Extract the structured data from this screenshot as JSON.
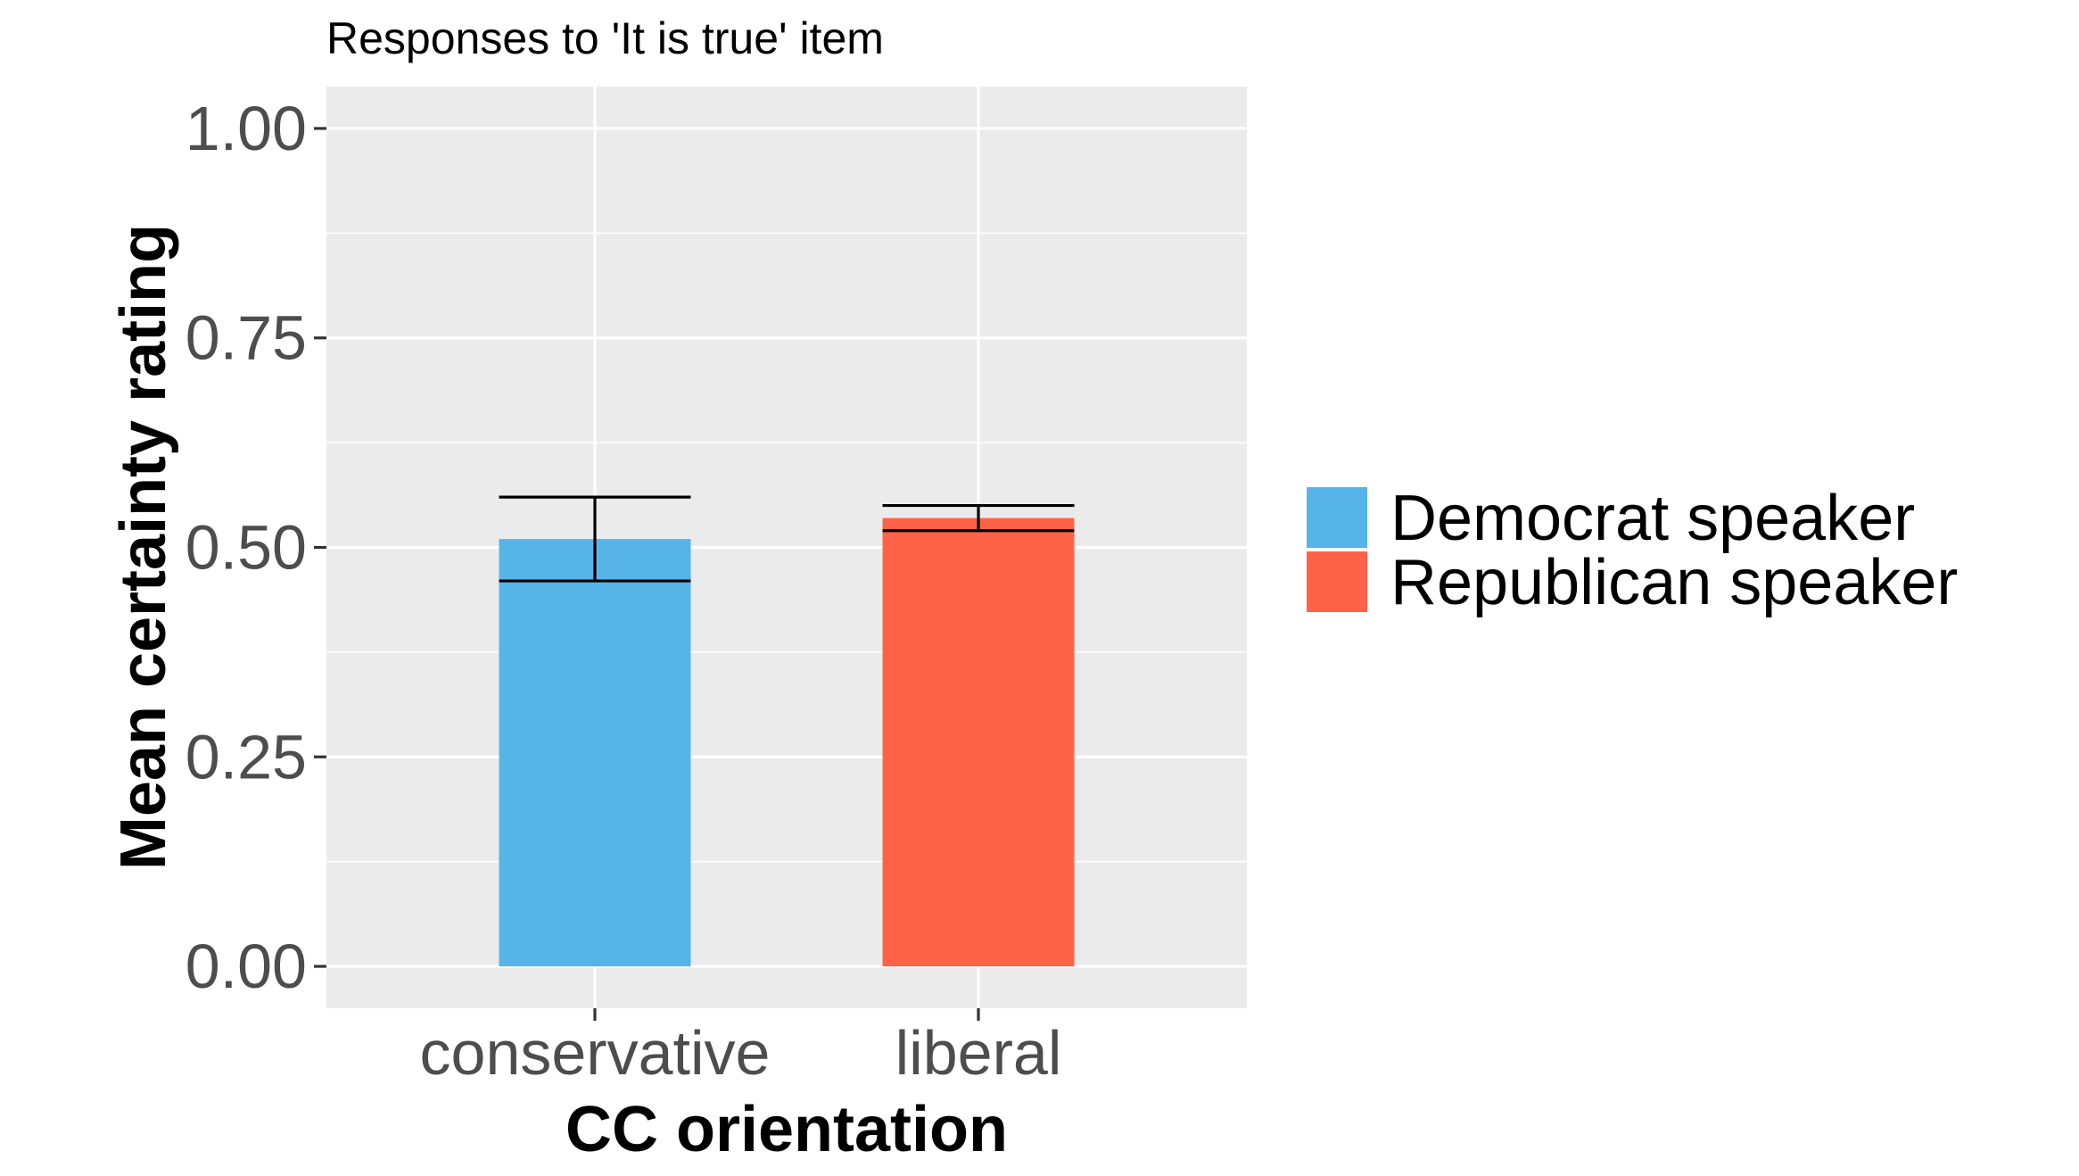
{
  "chart_data": {
    "type": "bar",
    "title": "Responses to 'It is true' item",
    "xlabel": "CC orientation",
    "ylabel": "Mean certainty rating",
    "categories": [
      "conservative",
      "liberal"
    ],
    "series": [
      {
        "name": "Democrat speaker",
        "color": "#56B4E9",
        "values": [
          0.51,
          null
        ],
        "error_low": [
          0.46,
          null
        ],
        "error_high": [
          0.56,
          null
        ]
      },
      {
        "name": "Republican speaker",
        "color": "#FF6347",
        "values": [
          null,
          0.535
        ],
        "error_low": [
          null,
          0.52
        ],
        "error_high": [
          null,
          0.55
        ]
      }
    ],
    "yticks": [
      "0.00",
      "0.25",
      "0.50",
      "0.75",
      "1.00"
    ],
    "ylim": [
      -0.05,
      1.05
    ],
    "grid": true,
    "legend_position": "right",
    "panel_background": "#EBEBEB"
  }
}
